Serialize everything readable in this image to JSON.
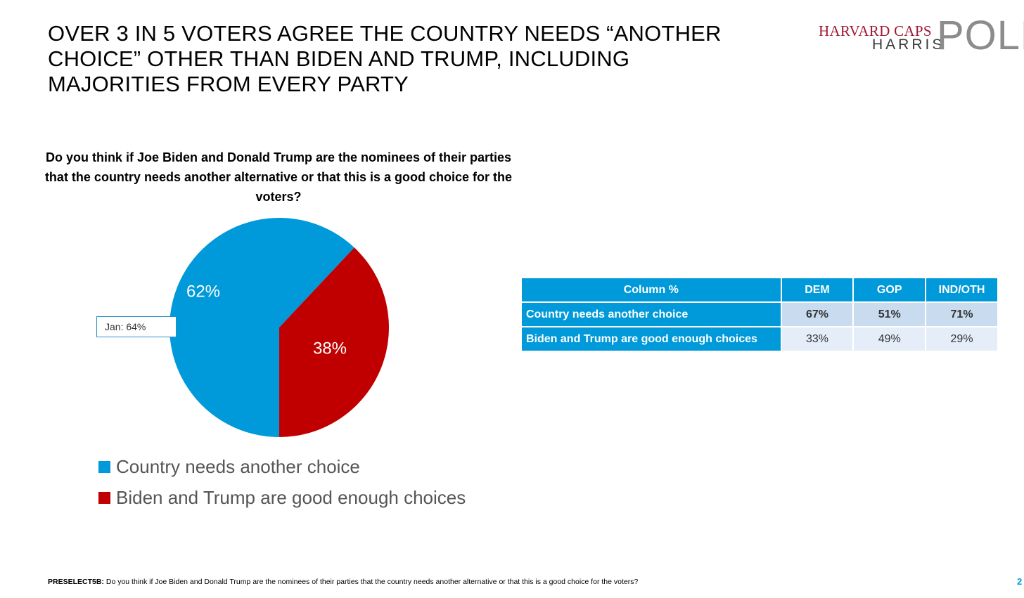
{
  "headline": {
    "line1": "OVER 3 IN 5 VOTERS AGREE THE COUNTRY NEEDS “ANOTHER",
    "line2": "CHOICE” OTHER THAN BIDEN AND TRUMP, INCLUDING",
    "line3": "MAJORITIES FROM EVERY PARTY"
  },
  "logo": {
    "caps": "HARVARD CAPS",
    "harris": "HARRIS",
    "poll": "POLL"
  },
  "question": "Do you think if Joe Biden and Donald Trump are the nominees of their parties that the country needs another alternative or that this is a good choice for the voters?",
  "chart_data": {
    "type": "pie",
    "slices": [
      {
        "label": "Country needs another choice",
        "value": 62,
        "display": "62%",
        "color": "#0099d9"
      },
      {
        "label": "Biden and Trump are good enough choices",
        "value": 38,
        "display": "38%",
        "color": "#c00000"
      }
    ],
    "annotation": "Jan: 64%",
    "legend_position": "bottom-left"
  },
  "crosstab": {
    "header": [
      "Column %",
      "DEM",
      "GOP",
      "IND/OTH"
    ],
    "rows": [
      {
        "label": "Country needs another choice",
        "values": [
          "67%",
          "51%",
          "71%"
        ]
      },
      {
        "label": "Biden and Trump are good enough choices",
        "values": [
          "33%",
          "49%",
          "29%"
        ]
      }
    ]
  },
  "footnote": {
    "code": "PRESELECT5B:",
    "text": "Do you think if Joe Biden and Donald Trump are the nominees of their parties that the country needs another alternative or that this is a good choice for the voters?"
  },
  "page_number": "2"
}
